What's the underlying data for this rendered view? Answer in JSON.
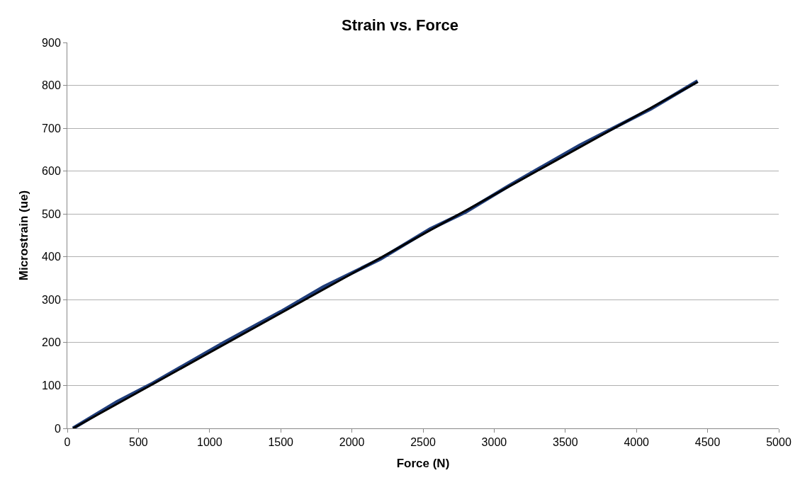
{
  "chart_data": {
    "type": "line",
    "title": "Strain vs. Force",
    "xlabel": "Force (N)",
    "ylabel": "Microstrain (ue)",
    "xlim": [
      0,
      5000
    ],
    "xticks": [
      0,
      500,
      1000,
      1500,
      2000,
      2500,
      3000,
      3500,
      4000,
      4500,
      5000
    ],
    "ylim": [
      0,
      900
    ],
    "yticks": [
      0,
      100,
      200,
      300,
      400,
      500,
      600,
      700,
      800,
      900
    ],
    "grid": "y",
    "marker": "none",
    "line_style": "solid",
    "series": [
      {
        "color": "#1f3d7a",
        "x": [
          40,
          350,
          600,
          1100,
          1500,
          1800,
          2200,
          2550,
          2800,
          3100,
          3600,
          4100,
          4430
        ],
        "values": [
          0,
          62,
          105,
          200,
          272,
          330,
          395,
          465,
          505,
          565,
          660,
          745,
          810
        ]
      },
      {
        "type": "line",
        "color": "#000000",
        "x": [
          40,
          4430
        ],
        "values": [
          0,
          808
        ]
      }
    ]
  }
}
